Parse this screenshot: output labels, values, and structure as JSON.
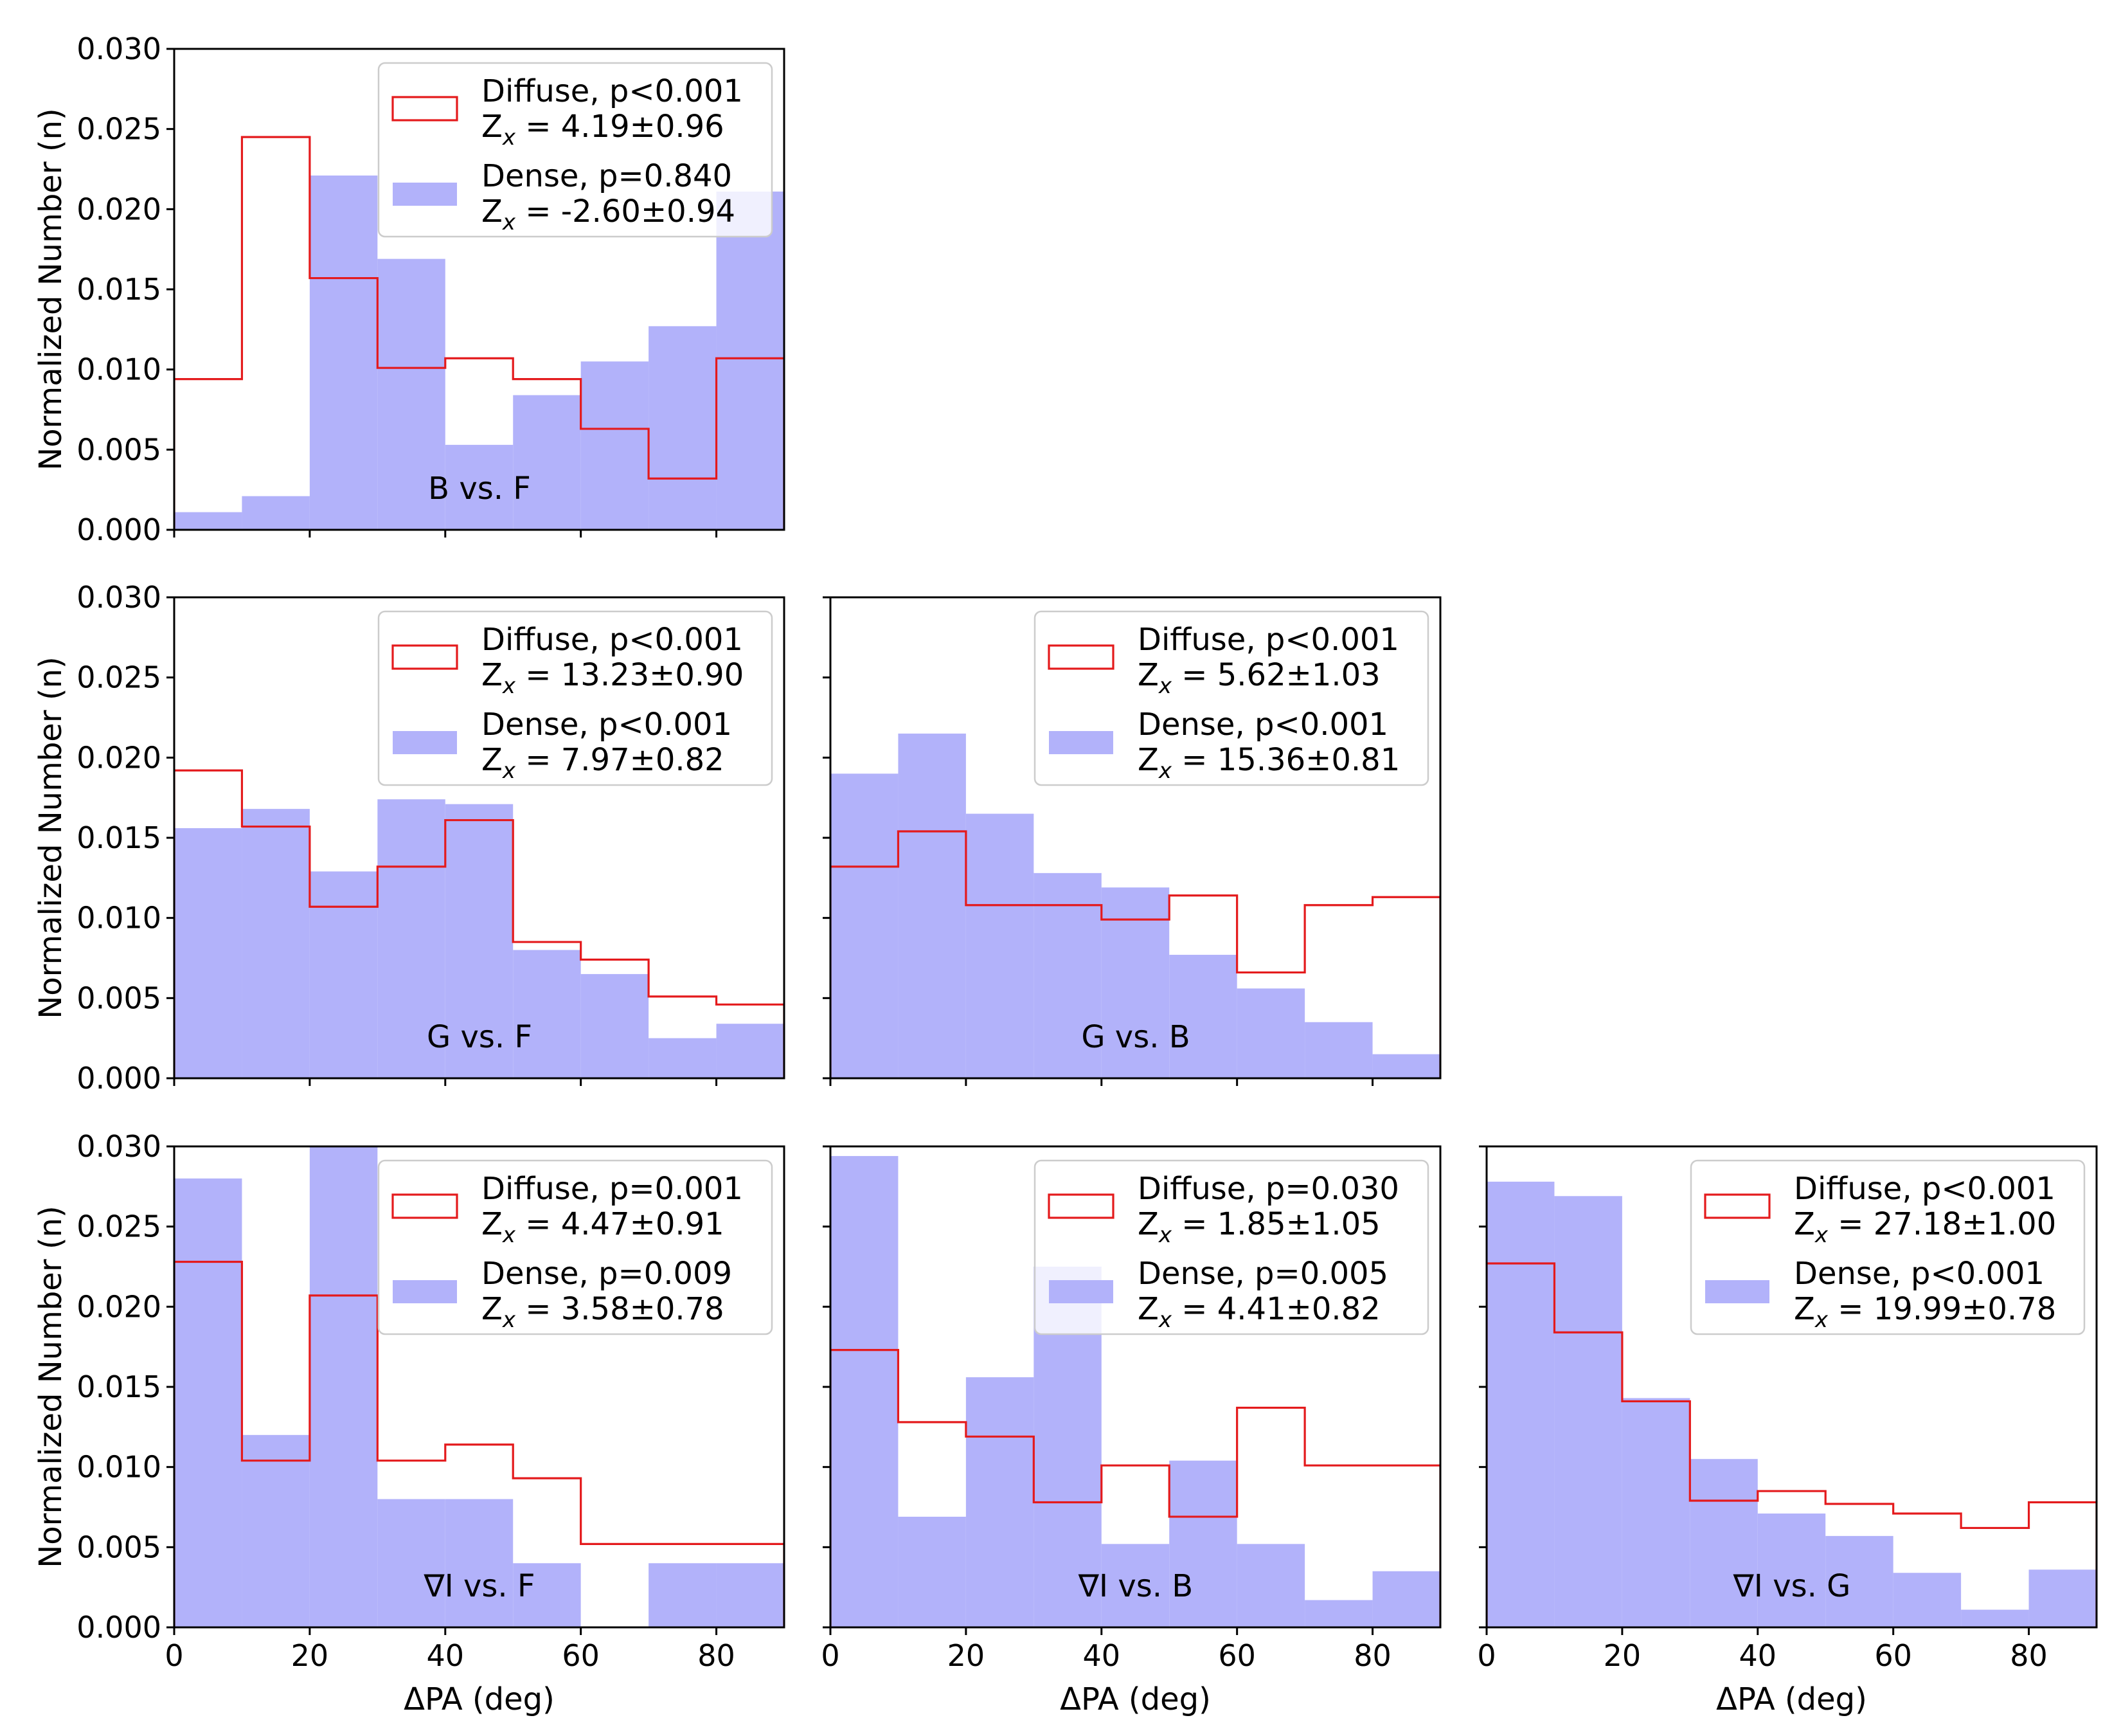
{
  "figure": {
    "ylabel": "Normalized Number (n)",
    "xlabel": "ΔPA (deg)",
    "xticks": [
      "0",
      "20",
      "40",
      "60",
      "80"
    ],
    "yticks": [
      "0.000",
      "0.005",
      "0.010",
      "0.015",
      "0.020",
      "0.025",
      "0.030"
    ],
    "colors": {
      "diffuse": "#e41a1c",
      "dense": "#b2b2fa",
      "axes": "#000000"
    }
  },
  "chart_data": [
    {
      "type": "bar",
      "id": "bf",
      "row": 0,
      "col": 0,
      "title": "B vs. F",
      "xlabel": "",
      "ylabel": "Normalized Number (n)",
      "xlim": [
        0,
        90
      ],
      "ylim": [
        0,
        0.03
      ],
      "bin_edges": [
        0,
        10,
        20,
        30,
        40,
        50,
        60,
        70,
        80,
        90
      ],
      "series": [
        {
          "name": "Diffuse",
          "label_line1": "Diffuse, p<0.001",
          "label_line2": "4.19±0.96",
          "style": "step",
          "values": [
            0.0094,
            0.0245,
            0.0157,
            0.0101,
            0.0107,
            0.0094,
            0.0063,
            0.0032,
            0.0107
          ]
        },
        {
          "name": "Dense",
          "label_line1": "Dense,  p=0.840",
          "label_line2": "-2.60±0.94",
          "style": "filled",
          "values": [
            0.0011,
            0.0021,
            0.0221,
            0.0169,
            0.0053,
            0.0084,
            0.0105,
            0.0127,
            0.0211
          ]
        }
      ]
    },
    {
      "type": "bar",
      "id": "gf",
      "row": 1,
      "col": 0,
      "title": "G vs. F",
      "xlabel": "",
      "ylabel": "Normalized Number (n)",
      "xlim": [
        0,
        90
      ],
      "ylim": [
        0,
        0.03
      ],
      "bin_edges": [
        0,
        10,
        20,
        30,
        40,
        50,
        60,
        70,
        80,
        90
      ],
      "series": [
        {
          "name": "Diffuse",
          "label_line1": "Diffuse, p<0.001",
          "label_line2": "13.23±0.90",
          "style": "step",
          "values": [
            0.0192,
            0.0157,
            0.0107,
            0.0132,
            0.0161,
            0.0085,
            0.0074,
            0.0051,
            0.0046
          ]
        },
        {
          "name": "Dense",
          "label_line1": "Dense,  p<0.001",
          "label_line2": "7.97±0.82",
          "style": "filled",
          "values": [
            0.0156,
            0.0168,
            0.0129,
            0.0174,
            0.0171,
            0.008,
            0.0065,
            0.0025,
            0.0034
          ]
        }
      ]
    },
    {
      "type": "bar",
      "id": "gb",
      "row": 1,
      "col": 1,
      "title": "G vs. B",
      "xlabel": "",
      "ylabel": "",
      "xlim": [
        0,
        90
      ],
      "ylim": [
        0,
        0.03
      ],
      "bin_edges": [
        0,
        10,
        20,
        30,
        40,
        50,
        60,
        70,
        80,
        90
      ],
      "series": [
        {
          "name": "Diffuse",
          "label_line1": "Diffuse, p<0.001",
          "label_line2": "5.62±1.03",
          "style": "step",
          "values": [
            0.0132,
            0.0154,
            0.0108,
            0.0108,
            0.0099,
            0.0114,
            0.0066,
            0.0108,
            0.0113
          ]
        },
        {
          "name": "Dense",
          "label_line1": "Dense,  p<0.001",
          "label_line2": "15.36±0.81",
          "style": "filled",
          "values": [
            0.019,
            0.0215,
            0.0165,
            0.0128,
            0.0119,
            0.0077,
            0.0056,
            0.0035,
            0.0015
          ]
        }
      ]
    },
    {
      "type": "bar",
      "id": "if",
      "row": 2,
      "col": 0,
      "title": "∇I vs. F",
      "xlabel": "ΔPA (deg)",
      "ylabel": "Normalized Number (n)",
      "xlim": [
        0,
        90
      ],
      "ylim": [
        0,
        0.03
      ],
      "bin_edges": [
        0,
        10,
        20,
        30,
        40,
        50,
        60,
        70,
        80,
        90
      ],
      "series": [
        {
          "name": "Diffuse",
          "label_line1": "Diffuse, p=0.001",
          "label_line2": "4.47±0.91",
          "style": "step",
          "values": [
            0.0228,
            0.0104,
            0.0207,
            0.0104,
            0.0114,
            0.0093,
            0.0052,
            0.0052,
            0.0052
          ]
        },
        {
          "name": "Dense",
          "label_line1": "Dense,  p=0.009",
          "label_line2": "3.58±0.78",
          "style": "filled",
          "values": [
            0.028,
            0.012,
            0.03,
            0.008,
            0.008,
            0.004,
            0.0,
            0.004,
            0.004
          ]
        }
      ]
    },
    {
      "type": "bar",
      "id": "ib",
      "row": 2,
      "col": 1,
      "title": "∇I vs. B",
      "xlabel": "ΔPA (deg)",
      "ylabel": "",
      "xlim": [
        0,
        90
      ],
      "ylim": [
        0,
        0.03
      ],
      "bin_edges": [
        0,
        10,
        20,
        30,
        40,
        50,
        60,
        70,
        80,
        90
      ],
      "series": [
        {
          "name": "Diffuse",
          "label_line1": "Diffuse, p=0.030",
          "label_line2": "1.85±1.05",
          "style": "step",
          "values": [
            0.0173,
            0.0128,
            0.0119,
            0.0078,
            0.0101,
            0.0069,
            0.0137,
            0.0101,
            0.0101
          ]
        },
        {
          "name": "Dense",
          "label_line1": "Dense,  p=0.005",
          "label_line2": "4.41±0.82",
          "style": "filled",
          "values": [
            0.0294,
            0.0069,
            0.0156,
            0.0225,
            0.0052,
            0.0104,
            0.0052,
            0.0017,
            0.0035
          ]
        }
      ]
    },
    {
      "type": "bar",
      "id": "ig",
      "row": 2,
      "col": 2,
      "title": "∇I vs. G",
      "xlabel": "ΔPA (deg)",
      "ylabel": "",
      "xlim": [
        0,
        90
      ],
      "ylim": [
        0,
        0.03
      ],
      "bin_edges": [
        0,
        10,
        20,
        30,
        40,
        50,
        60,
        70,
        80,
        90
      ],
      "series": [
        {
          "name": "Diffuse",
          "label_line1": "Diffuse, p<0.001",
          "label_line2": "27.18±1.00",
          "style": "step",
          "values": [
            0.0227,
            0.0184,
            0.0141,
            0.0079,
            0.0085,
            0.0077,
            0.0071,
            0.0062,
            0.0078
          ]
        },
        {
          "name": "Dense",
          "label_line1": "Dense,  p<0.001",
          "label_line2": "19.99±0.78",
          "style": "filled",
          "values": [
            0.0278,
            0.0269,
            0.0143,
            0.0105,
            0.0071,
            0.0057,
            0.0034,
            0.0011,
            0.0036
          ]
        }
      ]
    }
  ]
}
